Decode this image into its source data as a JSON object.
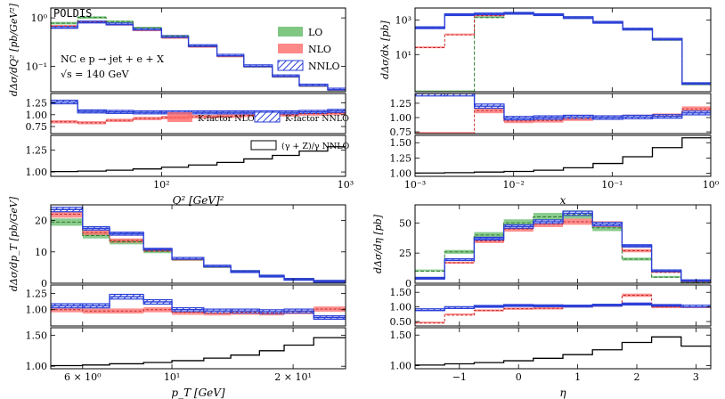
{
  "figure_label": "POLDIS",
  "process_text": [
    "NC   e p → jet + e + X",
    "√s = 140 GeV"
  ],
  "colors": {
    "lo": "#4caf50",
    "nlo": "#ff6b6b",
    "nnlo": "#2a3fd8",
    "ratio": "#000000"
  },
  "legend_main": {
    "lo": "LO",
    "nlo": "NLO",
    "nnlo": "NNLO"
  },
  "legend_kfactor": {
    "nlo": "K-factor NLO",
    "nnlo": "K-factor NNLO"
  },
  "legend_ratio": "(γ + Z)/γ NNLO",
  "chart_data": [
    {
      "id": "q2",
      "type": "step-histogram",
      "xscale": "log",
      "yscale": "log",
      "xlim": [
        25,
        1000
      ],
      "ylim": [
        0.03,
        1.6
      ],
      "xlabel": "Q² [GeV]²",
      "ylabel": "dΔσ/dQ² [pb/GeV²]",
      "x_ticks": [
        {
          "v": 100,
          "l": "10²"
        },
        {
          "v": 1000,
          "l": "10³"
        }
      ],
      "y_ticks": [
        {
          "v": 0.1,
          "l": "10⁻¹"
        },
        {
          "v": 1,
          "l": "10⁰"
        }
      ],
      "bins": [
        25,
        35,
        50,
        70,
        100,
        140,
        200,
        280,
        400,
        560,
        800,
        1000
      ],
      "lo": [
        0.78,
        1.02,
        0.84,
        0.62,
        0.42,
        0.265,
        0.165,
        0.1,
        0.062,
        0.04,
        0.033
      ],
      "nlo": [
        0.68,
        0.83,
        0.73,
        0.56,
        0.39,
        0.255,
        0.162,
        0.1,
        0.062,
        0.04,
        0.033
      ],
      "nnlo": [
        0.62,
        0.8,
        0.73,
        0.57,
        0.4,
        0.26,
        0.165,
        0.1,
        0.062,
        0.04,
        0.033
      ],
      "kfac_ylim": [
        0.6,
        1.45
      ],
      "kfac_ticks": [
        0.75,
        1.0,
        1.25
      ],
      "kfac_nlo": [
        0.85,
        0.83,
        0.88,
        0.92,
        0.94,
        0.96,
        0.97,
        0.99,
        1.0,
        1.02,
        1.03
      ],
      "kfac_nnlo": [
        1.27,
        1.07,
        1.06,
        1.05,
        1.05,
        1.05,
        1.05,
        1.05,
        1.05,
        1.06,
        1.08
      ],
      "ratio_ylim": [
        0.95,
        1.42
      ],
      "ratio_ticks": [
        1.0,
        1.25
      ],
      "ratio": [
        1.005,
        1.01,
        1.02,
        1.035,
        1.055,
        1.08,
        1.11,
        1.15,
        1.19,
        1.24,
        1.29
      ]
    },
    {
      "id": "x",
      "type": "step-histogram",
      "xscale": "log",
      "yscale": "log",
      "xlim": [
        0.001,
        1.0
      ],
      "ylim": [
        0.07,
        5000
      ],
      "xlabel": "x",
      "ylabel": "dΔσ/dx [pb]",
      "x_ticks": [
        {
          "v": 0.001,
          "l": "10⁻³"
        },
        {
          "v": 0.01,
          "l": "10⁻²"
        },
        {
          "v": 0.1,
          "l": "10⁻¹"
        },
        {
          "v": 1,
          "l": "10⁰"
        }
      ],
      "y_ticks": [
        {
          "v": 10,
          "l": "10¹"
        },
        {
          "v": 1000,
          "l": "10³"
        }
      ],
      "bins": [
        0.001,
        0.002,
        0.004,
        0.008,
        0.016,
        0.032,
        0.064,
        0.128,
        0.256,
        0.512,
        1.0
      ],
      "lo": [
        0.07,
        0.07,
        1400,
        2300,
        2000,
        1300,
        700,
        280,
        70,
        0.18
      ],
      "nlo": [
        25,
        140,
        1800,
        2400,
        2050,
        1350,
        720,
        290,
        75,
        0.2
      ],
      "nnlo": [
        350,
        2000,
        2200,
        2400,
        2000,
        1350,
        720,
        290,
        75,
        0.2
      ],
      "kfac_ylim": [
        0.72,
        1.42
      ],
      "kfac_ticks": [
        0.75,
        1.0,
        1.25
      ],
      "kfac_nlo": [
        0.72,
        0.72,
        1.12,
        0.94,
        0.95,
        0.98,
        1.0,
        1.01,
        1.03,
        1.15
      ],
      "kfac_nnlo": [
        1.42,
        1.42,
        1.2,
        0.99,
        1.0,
        1.01,
        1.0,
        1.01,
        1.02,
        1.08
      ],
      "ratio_ylim": [
        0.95,
        1.62
      ],
      "ratio_ticks": [
        1.0,
        1.25,
        1.5
      ],
      "ratio": [
        1.005,
        1.01,
        1.02,
        1.03,
        1.05,
        1.09,
        1.16,
        1.27,
        1.42,
        1.58
      ]
    },
    {
      "id": "pt",
      "type": "step-histogram",
      "xscale": "log",
      "yscale": "linear",
      "xlim": [
        5.0,
        27.0
      ],
      "ylim": [
        0,
        25
      ],
      "xlabel": "p_T [GeV]",
      "ylabel": "dΔσ/dp_T [pb/GeV]",
      "x_ticks": [
        {
          "v": 6,
          "l": "6 × 10⁰"
        },
        {
          "v": 10,
          "l": "10¹"
        },
        {
          "v": 20,
          "l": "2 × 10¹"
        }
      ],
      "y_ticks": [
        {
          "v": 0,
          "l": "0"
        },
        {
          "v": 10,
          "l": "10"
        },
        {
          "v": 20,
          "l": "20"
        }
      ],
      "bins": [
        5.0,
        6.0,
        7.0,
        8.5,
        10.0,
        12.0,
        14.0,
        16.5,
        19.0,
        22.5,
        27.0
      ],
      "lo": [
        19.5,
        15.2,
        13.2,
        10.2,
        7.6,
        5.2,
        3.7,
        2.3,
        1.3,
        0.6
      ],
      "nlo": [
        22.0,
        16.2,
        13.6,
        10.5,
        7.6,
        5.2,
        3.6,
        2.2,
        1.2,
        0.6
      ],
      "nnlo": [
        23.5,
        17.5,
        15.8,
        10.8,
        7.7,
        5.3,
        3.6,
        2.2,
        1.2,
        0.6
      ],
      "kfac_ylim": [
        0.75,
        1.38
      ],
      "kfac_ticks": [
        1.0,
        1.25
      ],
      "kfac_nlo": [
        1.0,
        0.98,
        0.98,
        1.0,
        0.96,
        0.95,
        0.96,
        0.95,
        0.97,
        1.01
      ],
      "kfac_nnlo": [
        1.06,
        1.06,
        1.2,
        1.12,
        1.0,
        0.98,
        0.98,
        0.97,
        0.98,
        0.88
      ],
      "ratio_ylim": [
        0.96,
        1.62
      ],
      "ratio_ticks": [
        1.0,
        1.5
      ],
      "ratio": [
        1.01,
        1.02,
        1.04,
        1.06,
        1.09,
        1.13,
        1.18,
        1.25,
        1.34,
        1.46
      ]
    },
    {
      "id": "eta",
      "type": "step-histogram",
      "xscale": "linear",
      "yscale": "linear",
      "xlim": [
        -1.75,
        3.25
      ],
      "ylim": [
        0,
        65
      ],
      "xlabel": "η",
      "ylabel": "dΔσ/dη [pb]",
      "x_ticks": [
        {
          "v": -1,
          "l": "−1"
        },
        {
          "v": 0,
          "l": "0"
        },
        {
          "v": 1,
          "l": "1"
        },
        {
          "v": 2,
          "l": "2"
        },
        {
          "v": 3,
          "l": "3"
        }
      ],
      "y_ticks": [
        {
          "v": 0,
          "l": "0"
        },
        {
          "v": 25,
          "l": "25"
        },
        {
          "v": 50,
          "l": "50"
        }
      ],
      "bins": [
        -1.75,
        -1.25,
        -0.75,
        -0.25,
        0.25,
        0.75,
        1.25,
        1.75,
        2.25,
        2.75,
        3.25
      ],
      "lo": [
        10,
        26,
        40,
        50,
        55,
        57,
        46,
        20,
        5,
        0.5
      ],
      "nlo": [
        4,
        17,
        35,
        45,
        49,
        51,
        49,
        27,
        9,
        1.5
      ],
      "nnlo": [
        4,
        19,
        37,
        47,
        51,
        58,
        49,
        31,
        10,
        2
      ],
      "kfac_ylim": [
        0.35,
        1.75
      ],
      "kfac_ticks": [
        0.5,
        1.0,
        1.5
      ],
      "kfac_nlo": [
        0.45,
        0.72,
        0.88,
        0.94,
        0.95,
        1.02,
        1.05,
        1.4,
        1.0,
        1.0
      ],
      "kfac_nnlo": [
        0.88,
        0.95,
        1.02,
        1.05,
        1.04,
        1.03,
        1.06,
        1.1,
        1.05,
        1.0
      ],
      "ratio_ylim": [
        0.95,
        1.62
      ],
      "ratio_ticks": [
        1.0,
        1.5
      ],
      "ratio": [
        1.01,
        1.03,
        1.05,
        1.08,
        1.12,
        1.18,
        1.26,
        1.38,
        1.47,
        1.32
      ]
    }
  ]
}
